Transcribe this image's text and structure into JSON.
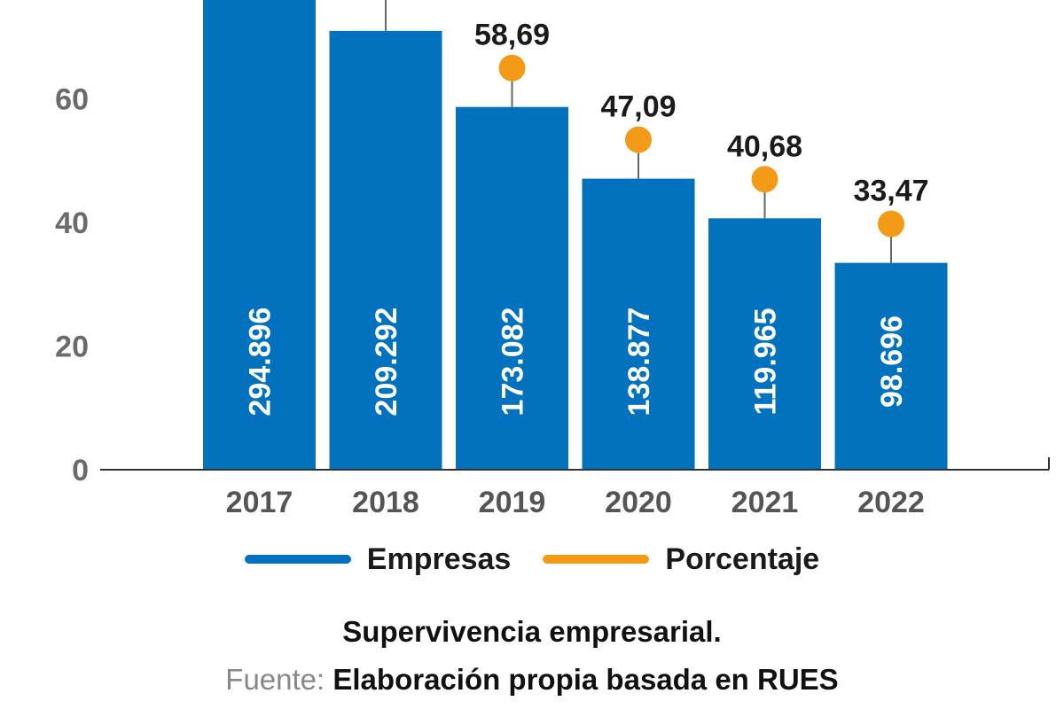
{
  "chart_data": {
    "type": "bar",
    "categories": [
      "2017",
      "2018",
      "2019",
      "2020",
      "2021",
      "2022"
    ],
    "series": [
      {
        "name": "Empresas",
        "label_values": [
          "294.896",
          "209.292",
          "173.082",
          "138.877",
          "119.965",
          "98.696"
        ],
        "values": [
          78,
          71,
          58.69,
          47.09,
          40.68,
          33.47
        ]
      },
      {
        "name": "Porcentaje",
        "values": [
          null,
          null,
          58.69,
          47.09,
          40.68,
          33.47
        ],
        "display_labels": [
          "",
          "",
          "58,69",
          "47,09",
          "40,68",
          "33,47"
        ]
      }
    ],
    "yticks": [
      "0",
      "20",
      "40",
      "60"
    ],
    "ylim": [
      0,
      76
    ],
    "colors": {
      "bars": "#0272bf",
      "dots": "#f39b17",
      "axis": "#333333"
    }
  },
  "legend": {
    "items": [
      {
        "label": "Empresas",
        "color": "#0272bf"
      },
      {
        "label": "Porcentaje",
        "color": "#f39b17"
      }
    ]
  },
  "caption": {
    "title": "Supervivencia empresarial.",
    "source_prefix": "Fuente: ",
    "source_text": "Elaboración propia basada en RUES"
  }
}
